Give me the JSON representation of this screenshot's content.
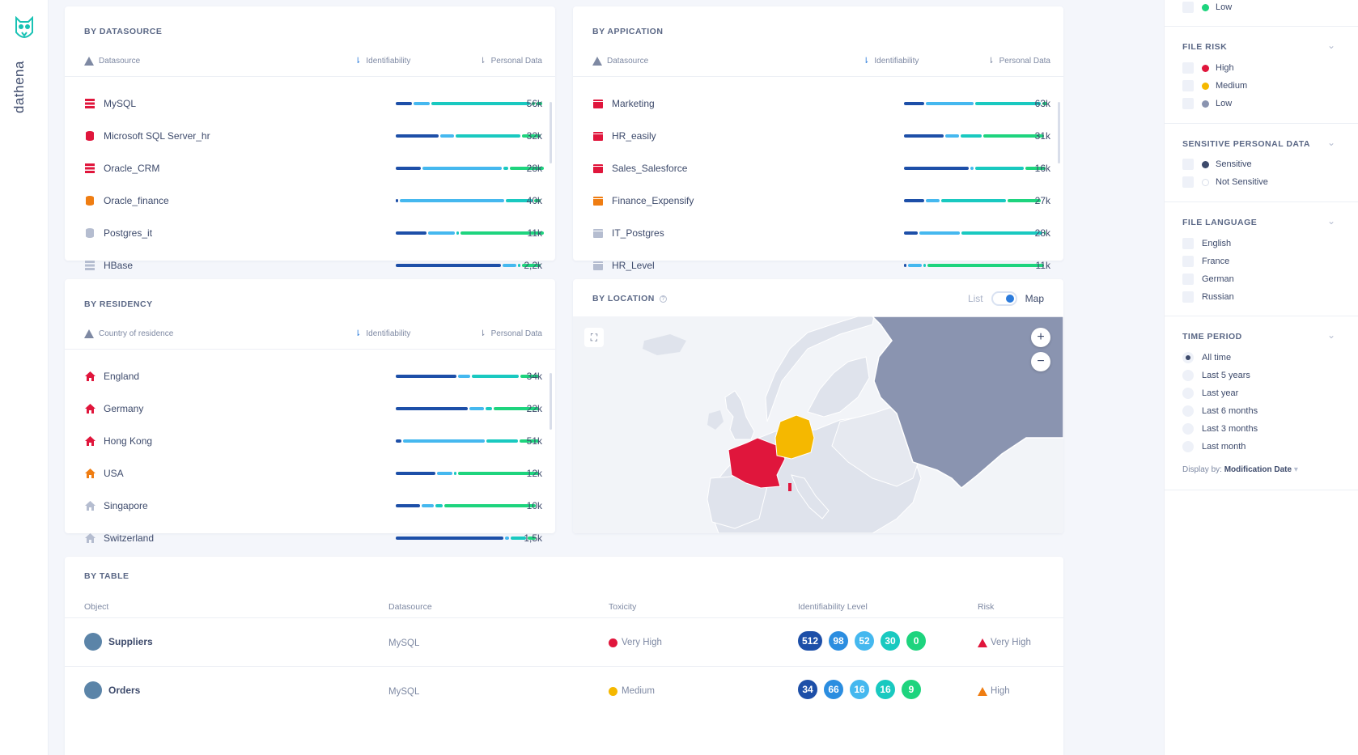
{
  "brand": {
    "name": "dathena",
    "accent": "#19c2b4"
  },
  "datasource_card": {
    "title": "BY DATASOURCE",
    "col_name": "Datasource",
    "col_ident": "Identifiability",
    "col_personal": "Personal Data",
    "rows": [
      {
        "label": "MySQL",
        "count": "56k",
        "icon_color": "#e0163c"
      },
      {
        "label": "Microsoft SQL Server_hr",
        "count": "32k",
        "icon_color": "#e0163c"
      },
      {
        "label": "Oracle_CRM",
        "count": "28k",
        "icon_color": "#e0163c"
      },
      {
        "label": "Oracle_finance",
        "count": "40k",
        "icon_color": "#ef7d12"
      },
      {
        "label": "Postgres_it",
        "count": "11k",
        "icon_color": "#b5bdd0"
      },
      {
        "label": "HBase",
        "count": "2,2k",
        "icon_color": "#b5bdd0"
      }
    ]
  },
  "application_card": {
    "title": "BY APPICATION",
    "col_name": "Datasource",
    "col_ident": "Identifiability",
    "col_personal": "Personal Data",
    "rows": [
      {
        "label": "Marketing",
        "count": "63k",
        "icon_color": "#e0163c"
      },
      {
        "label": "HR_easily",
        "count": "31k",
        "icon_color": "#e0163c"
      },
      {
        "label": "Sales_Salesforce",
        "count": "16k",
        "icon_color": "#e0163c"
      },
      {
        "label": "Finance_Expensify",
        "count": "27k",
        "icon_color": "#ef7d12"
      },
      {
        "label": "IT_Postgres",
        "count": "28k",
        "icon_color": "#b5bdd0"
      },
      {
        "label": "HR_Level",
        "count": "11k",
        "icon_color": "#b5bdd0"
      }
    ]
  },
  "residency_card": {
    "title": "BY RESIDENCY",
    "col_name": "Country of residence",
    "col_ident": "Identifiability",
    "col_personal": "Personal Data",
    "rows": [
      {
        "label": "England",
        "count": "34k",
        "icon_color": "#e0163c"
      },
      {
        "label": "Germany",
        "count": "22k",
        "icon_color": "#e0163c"
      },
      {
        "label": "Hong Kong",
        "count": "51k",
        "icon_color": "#e0163c"
      },
      {
        "label": "USA",
        "count": "12k",
        "icon_color": "#ef7d12"
      },
      {
        "label": "Singapore",
        "count": "10k",
        "icon_color": "#b5bdd0"
      },
      {
        "label": "Switzerland",
        "count": "1,5k",
        "icon_color": "#b5bdd0"
      }
    ]
  },
  "location_card": {
    "title": "BY LOCATION",
    "list_label": "List",
    "map_label": "Map",
    "zoom_in": "+",
    "zoom_out": "−"
  },
  "table_card": {
    "title": "BY TABLE",
    "headers": {
      "object": "Object",
      "datasource": "Datasource",
      "toxicity": "Toxicity",
      "identifiability": "Identifiability Level",
      "risk": "Risk"
    },
    "rows": [
      {
        "object": "Suppliers",
        "datasource": "MySQL",
        "toxicity": "Very High",
        "toxicity_color": "#e0163c",
        "levels": [
          "512",
          "98",
          "52",
          "30",
          "0"
        ],
        "risk": "Very High",
        "risk_color": "#e0163c"
      },
      {
        "object": "Orders",
        "datasource": "MySQL",
        "toxicity": "Medium",
        "toxicity_color": "#f5b800",
        "levels": [
          "34",
          "66",
          "16",
          "16",
          "9"
        ],
        "risk": "High",
        "risk_color": "#ef7d12"
      }
    ]
  },
  "level_colors": [
    "#1d4fa8",
    "#2b8de0",
    "#45b8ef",
    "#19c9c0",
    "#1ed47e"
  ],
  "filters": {
    "top_low": "Low",
    "file_risk": {
      "title": "FILE RISK",
      "options": [
        "High",
        "Medium",
        "Low"
      ]
    },
    "sensitive": {
      "title": "SENSITIVE PERSONAL DATA",
      "options": [
        "Sensitive",
        "Not Sensitive"
      ]
    },
    "language": {
      "title": "FILE LANGUAGE",
      "options": [
        "English",
        "France",
        "German",
        "Russian"
      ]
    },
    "time": {
      "title": "TIME PERIOD",
      "options": [
        "All time",
        "Last 5 years",
        "Last year",
        "Last 6 months",
        "Last 3 months",
        "Last month"
      ],
      "selected": "All time"
    },
    "display_by_label": "Display by:",
    "display_by_value": "Modification Date"
  }
}
